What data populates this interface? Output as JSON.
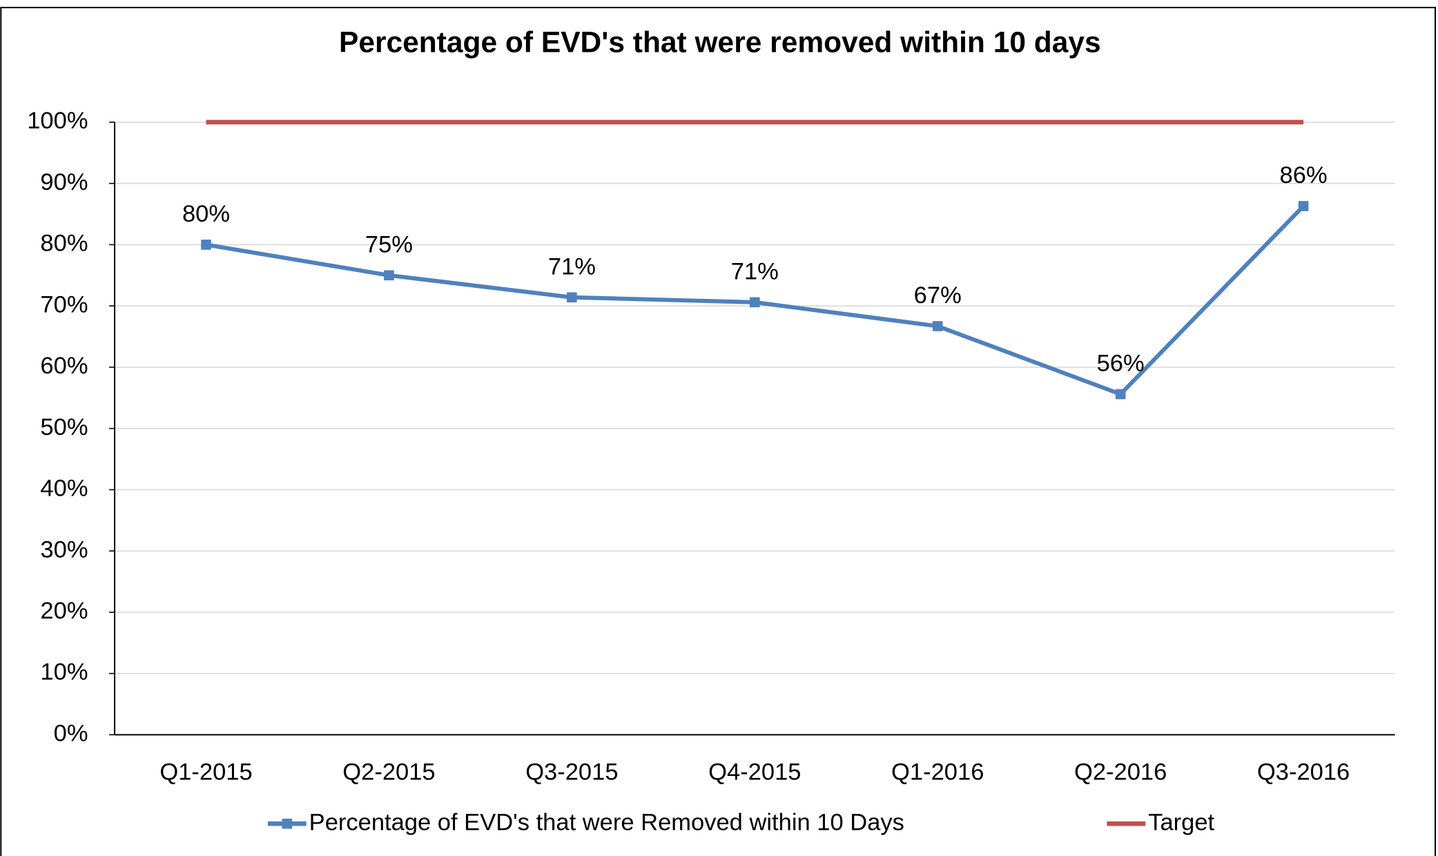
{
  "chart_data": {
    "type": "line",
    "title": "Percentage of EVD's that were removed within 10 days",
    "categories": [
      "Q1-2015",
      "Q2-2015",
      "Q3-2015",
      "Q4-2015",
      "Q1-2016",
      "Q2-2016",
      "Q3-2016"
    ],
    "series": [
      {
        "name": "Percentage of EVD's that were Removed within 10 Days",
        "color": "#4f81bd",
        "marker": "square",
        "data_labels": true,
        "values": [
          80,
          75,
          71.4,
          70.6,
          66.7,
          55.6,
          86.3
        ],
        "value_labels": [
          "80%",
          "75%",
          "71%",
          "71%",
          "67%",
          "56%",
          "86%"
        ]
      },
      {
        "name": "Target",
        "color": "#c0504d",
        "marker": "none",
        "data_labels": false,
        "values": [
          100,
          100,
          100,
          100,
          100,
          100,
          100
        ]
      }
    ],
    "ylim": [
      0,
      100
    ],
    "yticks": [
      {
        "value": 0,
        "label": "0%"
      },
      {
        "value": 10,
        "label": "10%"
      },
      {
        "value": 20,
        "label": "20%"
      },
      {
        "value": 30,
        "label": "30%"
      },
      {
        "value": 40,
        "label": "40%"
      },
      {
        "value": 50,
        "label": "50%"
      },
      {
        "value": 60,
        "label": "60%"
      },
      {
        "value": 70,
        "label": "70%"
      },
      {
        "value": 80,
        "label": "80%"
      },
      {
        "value": 90,
        "label": "90%"
      },
      {
        "value": 100,
        "label": "100%"
      }
    ],
    "grid": true,
    "legend": "bottom"
  }
}
